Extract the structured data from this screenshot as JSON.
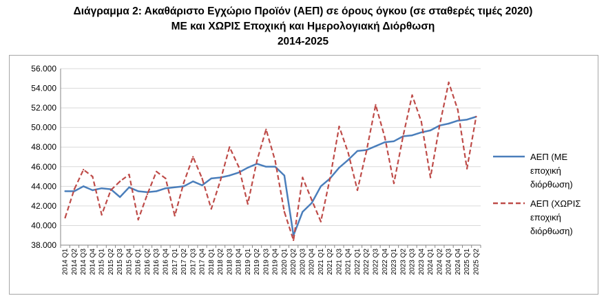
{
  "title": {
    "line1": "Διάγραμμα 2: Ακαθάριστο Εγχώριο Προϊόν (ΑΕΠ) σε όρους όγκου (σε σταθερές τιμές 2020)",
    "line2": "ΜΕ και ΧΩΡΙΣ Εποχική και Ημερολογιακή Διόρθωση",
    "line3": "2014-2025"
  },
  "chart_data": {
    "type": "line",
    "x": [
      "2014 Q1",
      "2014 Q2",
      "2014 Q3",
      "2014 Q4",
      "2015 Q1",
      "2015 Q2",
      "2015 Q3",
      "2015 Q4",
      "2016 Q1",
      "2016 Q2",
      "2016 Q3",
      "2016 Q4",
      "2017 Q1",
      "2017 Q2",
      "2017 Q3",
      "2017 Q4",
      "2018 Q1",
      "2018 Q2",
      "2018 Q3",
      "2018 Q4",
      "2019 Q1",
      "2019 Q2",
      "2019 Q3",
      "2019 Q4",
      "2020 Q1",
      "2020 Q2",
      "2020 Q3",
      "2020 Q4",
      "2021 Q1",
      "2021 Q2",
      "2021 Q3",
      "2021 Q4",
      "2022 Q1",
      "2022 Q2",
      "2022 Q3",
      "2022 Q4",
      "2023 Q1",
      "2023 Q2",
      "2023 Q3",
      "2023 Q4",
      "2024 Q1",
      "2024 Q2",
      "2024 Q3",
      "2024 Q4",
      "2025 Q1",
      "2025 Q2"
    ],
    "ylim": [
      38000,
      56000
    ],
    "yticks": [
      "38.000",
      "40.000",
      "42.000",
      "44.000",
      "46.000",
      "48.000",
      "50.000",
      "52.000",
      "54.000",
      "56.000"
    ],
    "grid": true,
    "legend_position": "right",
    "series": [
      {
        "name_lines": [
          "ΑΕΠ (ΜΕ",
          "εποχική",
          "διόρθωση)"
        ],
        "color": "#4a7ebb",
        "style": "solid",
        "values": [
          43500,
          43500,
          44000,
          43600,
          43800,
          43700,
          42900,
          43900,
          43500,
          43400,
          43500,
          43800,
          43900,
          44000,
          44500,
          44100,
          44800,
          44900,
          45100,
          45400,
          45900,
          46300,
          46000,
          46000,
          45100,
          39000,
          41400,
          42300,
          44000,
          44800,
          45900,
          46700,
          47600,
          47700,
          48100,
          48500,
          48600,
          49100,
          49200,
          49500,
          49700,
          50200,
          50400,
          50700,
          50800,
          51100
        ]
      },
      {
        "name_lines": [
          "ΑΕΠ (ΧΩΡΙΣ",
          "εποχική",
          "διόρθωση)"
        ],
        "color": "#be4b48",
        "style": "dashed",
        "values": [
          40800,
          43700,
          45700,
          45000,
          41100,
          43600,
          44500,
          45200,
          40600,
          43200,
          45500,
          44800,
          41000,
          44400,
          47000,
          44800,
          41700,
          44600,
          48000,
          46000,
          42200,
          46600,
          49800,
          46600,
          41400,
          38500,
          44900,
          42600,
          40400,
          44800,
          50100,
          47400,
          43600,
          47600,
          52300,
          49000,
          44300,
          49100,
          53300,
          50600,
          44900,
          50200,
          54600,
          51800,
          45800,
          51100
        ]
      }
    ]
  }
}
